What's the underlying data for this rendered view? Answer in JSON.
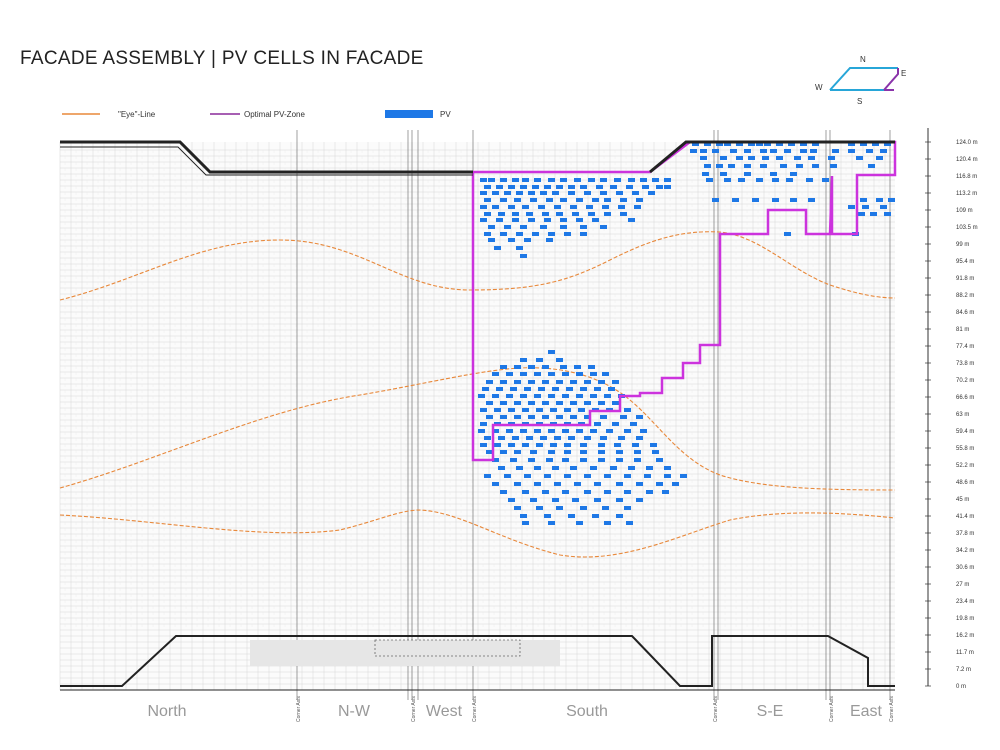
{
  "title": "FACADE ASSEMBLY | PV CELLS IN FACADE",
  "legend": {
    "eye_line": "\"Eye\"-Line",
    "optimal_zone": "Optimal PV-Zone",
    "pv": "PV"
  },
  "compass": {
    "n": "N",
    "e": "E",
    "s": "S",
    "w": "W"
  },
  "elevation_labels": [
    "124.0 m",
    "120.4 m",
    "116.8 m",
    "113.2 m",
    "109 m",
    "103.5 m",
    "99 m",
    "95.4 m",
    "91.8 m",
    "88.2 m",
    "84.6 m",
    "81 m",
    "77.4 m",
    "73.8 m",
    "70.2 m",
    "66.6 m",
    "63 m",
    "59.4 m",
    "55.8 m",
    "52.2 m",
    "48.6 m",
    "45 m",
    "41.4 m",
    "37.8 m",
    "34.2 m",
    "30.6 m",
    "27 m",
    "23.4 m",
    "19.8 m",
    "16.2 m",
    "11.7 m",
    "7.2 m",
    "0 m"
  ],
  "sections": [
    "North",
    "N-W",
    "West",
    "South",
    "S-E",
    "East"
  ],
  "corner_label": "Corner Axis",
  "colors": {
    "eye_line": "#e8883a",
    "optimal_zone": "#cc33dd",
    "pv": "#1e78e6",
    "grid": "#cfcfcf",
    "compass_north": "#27a6d8",
    "compass_south": "#8a33aa"
  }
}
